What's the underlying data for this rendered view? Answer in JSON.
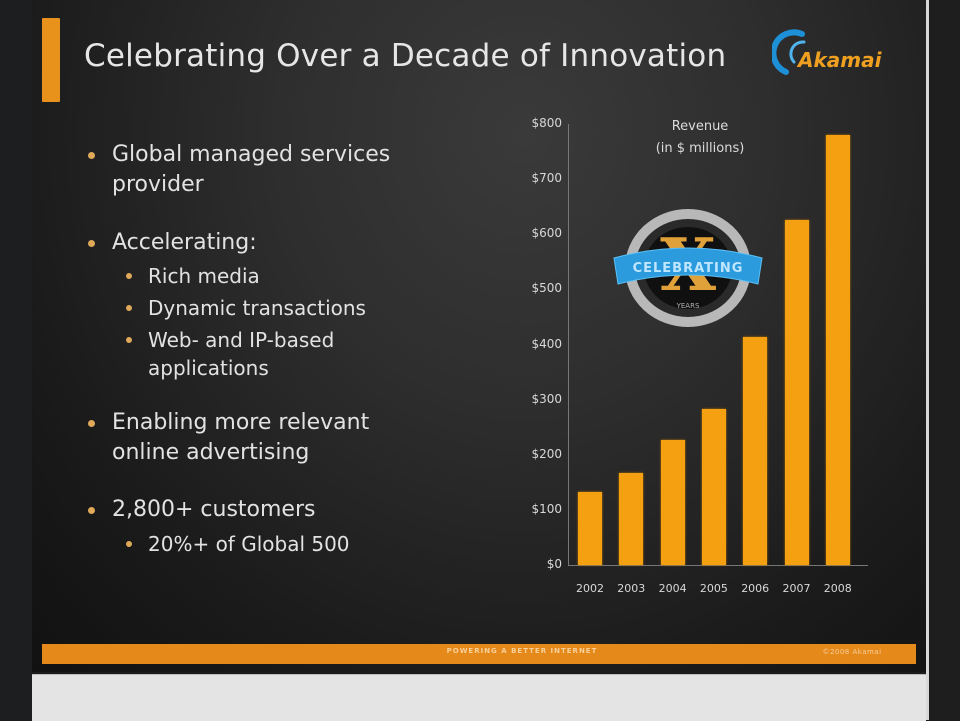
{
  "slide": {
    "title": "Celebrating Over a Decade of Innovation",
    "logo_text": "Akamai",
    "accent_color": "#e8921c",
    "bullets": [
      {
        "text": "Global managed services",
        "text2": "provider",
        "level": 1
      },
      {
        "text": "Accelerating:",
        "level": 1
      },
      {
        "text": "Rich media",
        "level": 2
      },
      {
        "text": "Dynamic transactions",
        "level": 2
      },
      {
        "text": "Web- and IP-based",
        "text2": "applications",
        "level": 2
      },
      {
        "text": "Enabling more relevant",
        "text2": "online advertising",
        "level": 1
      },
      {
        "text": "2,800+ customers",
        "level": 1
      },
      {
        "text": "20%+ of Global 500",
        "level": 2
      }
    ],
    "badge": {
      "letter": "X",
      "ribbon": "CELEBRATING",
      "bottom": "YEARS"
    },
    "footer": {
      "center": "POWERING A BETTER INTERNET",
      "right": "©2008 Akamai"
    }
  },
  "chart_data": {
    "type": "bar",
    "title": "Revenue",
    "subtitle": "(in $ millions)",
    "categories": [
      "2002",
      "2003",
      "2004",
      "2005",
      "2006",
      "2007",
      "2008"
    ],
    "values": [
      132,
      167,
      227,
      283,
      414,
      626,
      780
    ],
    "ylabel": "",
    "xlabel": "",
    "ylim": [
      0,
      800
    ],
    "yticks": [
      "$0",
      "$100",
      "$200",
      "$300",
      "$400",
      "$500",
      "$600",
      "$700",
      "$800"
    ],
    "grid": false,
    "legend": null,
    "bar_color": "#f5a011"
  }
}
